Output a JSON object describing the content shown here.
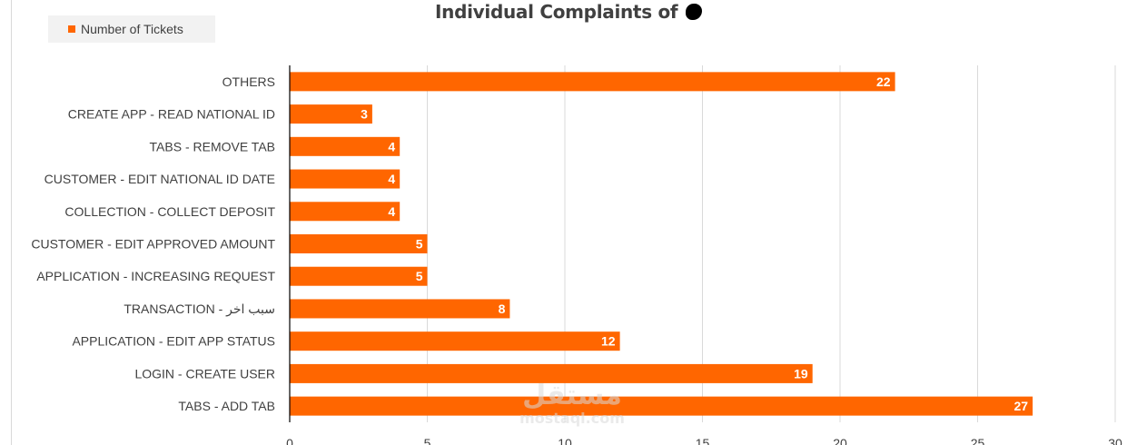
{
  "chart_data": {
    "type": "bar",
    "orientation": "horizontal",
    "title": "Individual Complaints of",
    "categories": [
      "OTHERS",
      "CREATE APP - READ NATIONAL ID",
      "TABS - REMOVE TAB",
      "CUSTOMER - EDIT NATIONAL ID DATE",
      "COLLECTION - COLLECT DEPOSIT",
      "CUSTOMER - EDIT APPROVED AMOUNT",
      "APPLICATION - INCREASING REQUEST",
      "TRANSACTION - سبب اخر",
      "APPLICATION - EDIT APP STATUS",
      "LOGIN - CREATE USER",
      "TABS - ADD TAB"
    ],
    "series": [
      {
        "name": "Number of Tickets",
        "values": [
          22,
          3,
          4,
          4,
          4,
          5,
          5,
          8,
          12,
          19,
          27
        ],
        "color": "#ff6600"
      }
    ],
    "xlim": [
      0,
      30
    ],
    "xticks": [
      0,
      5,
      10,
      15,
      20,
      25,
      30
    ],
    "grid": "vertical",
    "legend_position": "top-left",
    "data_labels": true
  },
  "colors": {
    "bar": "#ff6600",
    "grid": "#d9d9d9",
    "axis": "#000000",
    "text": "#404040"
  },
  "watermark": {
    "arabic": "مستقل",
    "latin": "mostaql.com"
  }
}
